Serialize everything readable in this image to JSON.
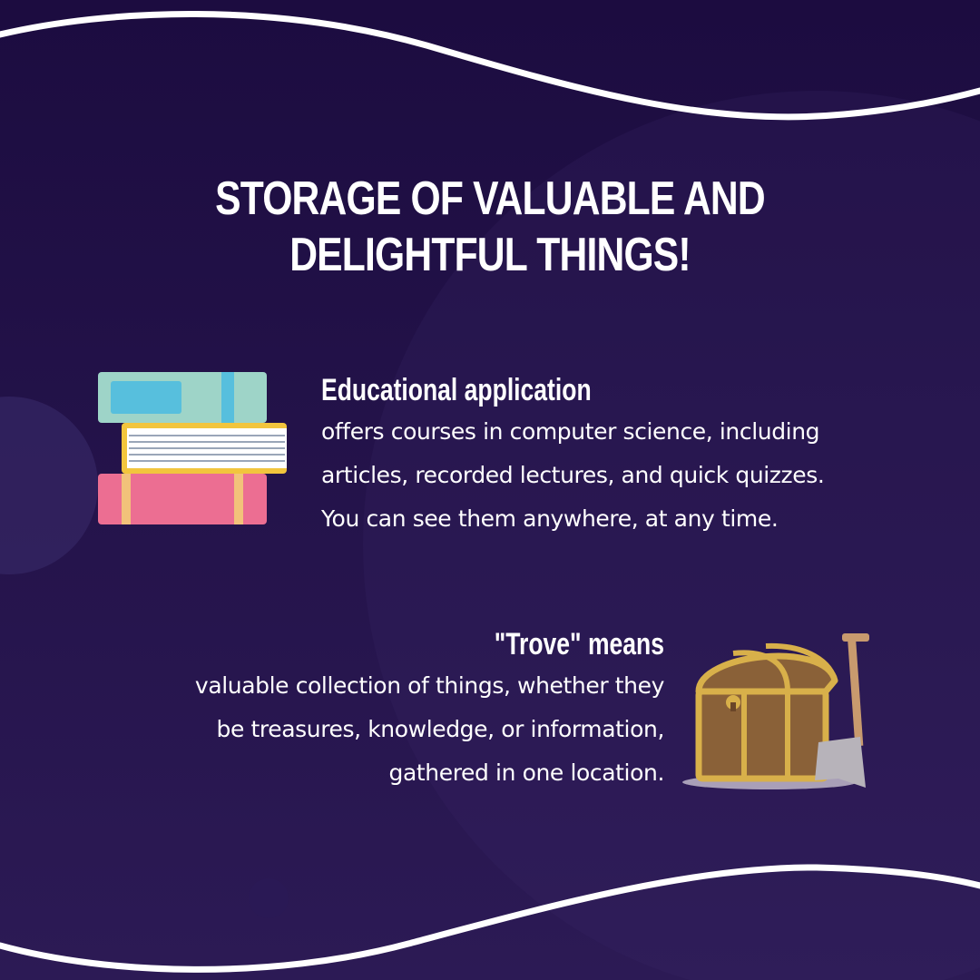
{
  "title": "STORAGE OF VALUABLE AND DELIGHTFUL THINGS!",
  "sections": [
    {
      "heading": "Educational application",
      "lines": [
        "offers courses in computer science, including",
        "articles, recorded lectures, and quick quizzes.",
        "You can see them anywhere, at any time."
      ],
      "icon": "books-stack-icon"
    },
    {
      "heading": "\"Trove\" means",
      "lines": [
        "valuable collection of things, whether they",
        "be treasures, knowledge, or information,",
        "gathered in one location."
      ],
      "icon": "treasure-chest-icon"
    }
  ],
  "colors": {
    "background": "#1e0f45",
    "text": "#ffffff",
    "wave": "#ffffff"
  }
}
